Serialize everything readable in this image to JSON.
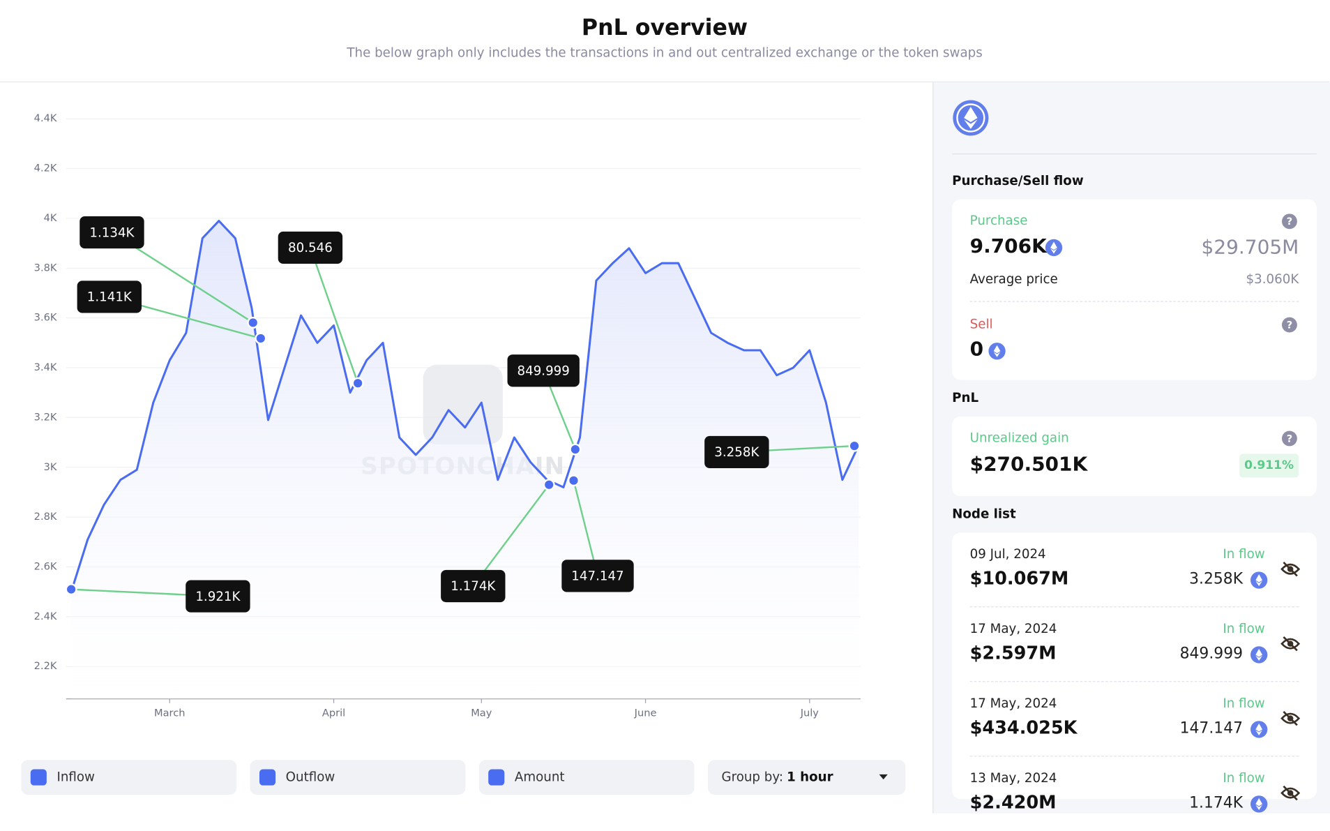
{
  "header": {
    "title": "PnL overview",
    "subtitle": "The below graph only includes the transactions in and out centralized exchange or the token swaps"
  },
  "chart_data": {
    "type": "line",
    "color": "#4a6cf0",
    "categories": [
      null,
      null,
      null,
      null,
      null,
      null,
      "March",
      null,
      null,
      null,
      null,
      null,
      null,
      null,
      null,
      null,
      "April",
      null,
      null,
      null,
      null,
      null,
      null,
      null,
      null,
      "May",
      null,
      null,
      null,
      null,
      null,
      null,
      null,
      null,
      null,
      "June",
      null,
      null,
      null,
      null,
      null,
      null,
      null,
      null,
      null,
      "July",
      null,
      null,
      null
    ],
    "values": [
      2500,
      2710,
      2850,
      2950,
      2990,
      3260,
      3430,
      3540,
      3920,
      3990,
      3920,
      3640,
      3190,
      3400,
      3610,
      3500,
      3570,
      3300,
      3430,
      3500,
      3120,
      3050,
      3120,
      3230,
      3160,
      3260,
      2950,
      3120,
      3020,
      2950,
      2920,
      3120,
      3750,
      3820,
      3880,
      3780,
      3820,
      3820,
      3680,
      3540,
      3500,
      3470,
      3470,
      3370,
      3400,
      3470,
      3260,
      2950,
      3090
    ],
    "ylim": [
      2070,
      4400
    ],
    "yticks": [
      {
        "value": 2200,
        "label": "2.2K"
      },
      {
        "value": 2400,
        "label": "2.4K"
      },
      {
        "value": 2600,
        "label": "2.6K"
      },
      {
        "value": 2800,
        "label": "2.8K"
      },
      {
        "value": 3000,
        "label": "3K"
      },
      {
        "value": 3200,
        "label": "3.2K"
      },
      {
        "value": 3400,
        "label": "3.4K"
      },
      {
        "value": 3600,
        "label": "3.6K"
      },
      {
        "value": 3800,
        "label": "3.8K"
      },
      {
        "value": 4000,
        "label": "4K"
      },
      {
        "value": 4200,
        "label": "4.2K"
      },
      {
        "value": 4400,
        "label": "4.4K"
      }
    ],
    "grid": true,
    "annotations": [
      {
        "label": "1.921K",
        "x": 0,
        "y": 2510
      },
      {
        "label": "1.134K",
        "x": 11.08,
        "y": 3581
      },
      {
        "label": "1.141K",
        "x": 11.55,
        "y": 3518
      },
      {
        "label": "80.546",
        "x": 17.47,
        "y": 3338
      },
      {
        "label": "1.174K",
        "x": 29.12,
        "y": 2930
      },
      {
        "label": "147.147",
        "x": 30.62,
        "y": 2947
      },
      {
        "label": "849.999",
        "x": 30.72,
        "y": 3072
      },
      {
        "label": "3.258K",
        "x": 47.73,
        "y": 3086
      }
    ],
    "watermark": "SPOTONCHAIN"
  },
  "controls": {
    "filters": [
      "Inflow",
      "Outflow",
      "Amount"
    ],
    "group_by_label": "Group by:",
    "group_by_value": "1 hour"
  },
  "panel": {
    "flow_title": "Purchase/Sell flow",
    "purchase_label": "Purchase",
    "purchase_amount": "9.706K",
    "purchase_usd": "$29.705M",
    "avg_label": "Average price",
    "avg_value": "$3.060K",
    "sell_label": "Sell",
    "sell_amount": "0",
    "pnl_title": "PnL",
    "gain_label": "Unrealized gain",
    "gain_value": "$270.501K",
    "gain_pct": "0.911%",
    "node_title": "Node list",
    "nodes": [
      {
        "date": "09 Jul, 2024",
        "kind": "In flow",
        "usd": "$10.067M",
        "amount": "3.258K"
      },
      {
        "date": "17 May, 2024",
        "kind": "In flow",
        "usd": "$2.597M",
        "amount": "849.999"
      },
      {
        "date": "17 May, 2024",
        "kind": "In flow",
        "usd": "$434.025K",
        "amount": "147.147"
      },
      {
        "date": "13 May, 2024",
        "kind": "In flow",
        "usd": "$2.420M",
        "amount": "1.174K"
      }
    ]
  }
}
